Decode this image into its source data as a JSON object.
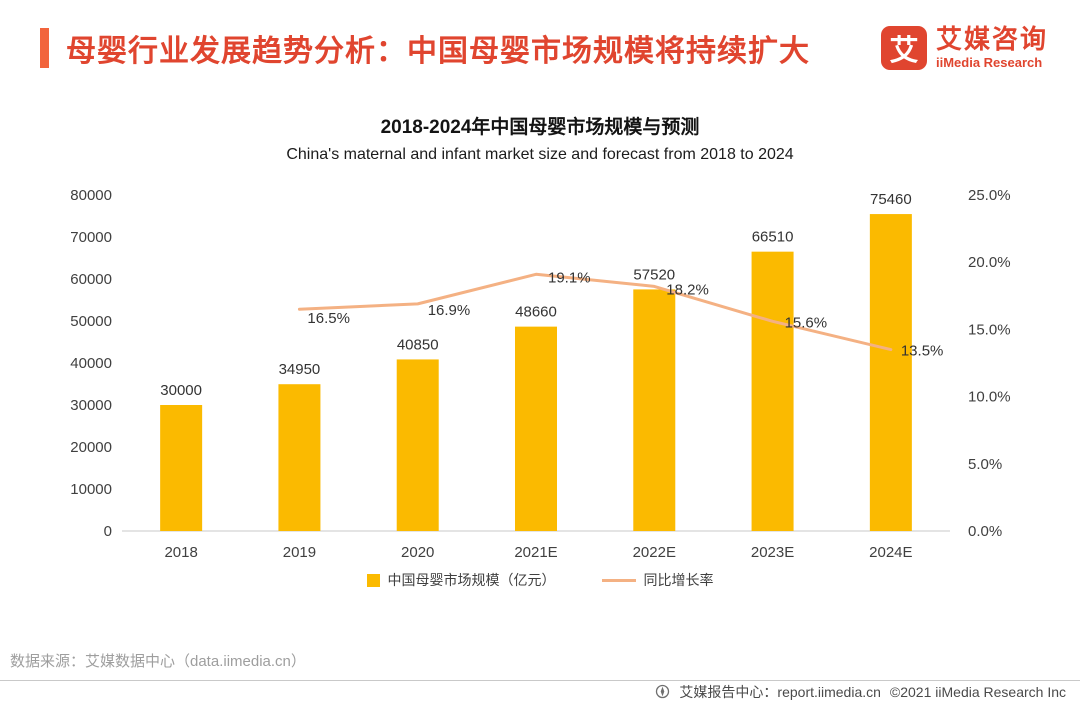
{
  "colors": {
    "brand": "#E0452F",
    "accent": "#F2643C",
    "bar": "#FBBA00",
    "line": "#F4B183",
    "source": "#9E9E9E"
  },
  "header": {
    "title": "母婴行业发展趋势分析：中国母婴市场规模将持续扩大",
    "logo": {
      "glyph": "艾",
      "name_cn": "艾媒咨询",
      "name_en": "iiMedia Research"
    }
  },
  "chart_data": {
    "type": "bar+line",
    "title": "2018-2024年中国母婴市场规模与预测",
    "subtitle": "China's maternal and infant market size and forecast from 2018 to 2024",
    "categories": [
      "2018",
      "2019",
      "2020",
      "2021E",
      "2022E",
      "2023E",
      "2024E"
    ],
    "series": [
      {
        "name": "中国母婴市场规模（亿元）",
        "type": "bar",
        "axis": "left",
        "color": "#FBBA00",
        "values": [
          30000,
          34950,
          40850,
          48660,
          57520,
          66510,
          75460
        ]
      },
      {
        "name": "同比增长率",
        "type": "line",
        "axis": "right",
        "color": "#F4B183",
        "values": [
          null,
          16.5,
          16.9,
          19.1,
          18.2,
          15.6,
          13.5
        ],
        "point_labels": [
          "",
          "16.5%",
          "16.9%",
          "19.1%",
          "18.2%",
          "15.6%",
          "13.5%"
        ]
      }
    ],
    "left_axis": {
      "min": 0,
      "max": 80000,
      "step": 10000,
      "ticks": [
        "0",
        "10000",
        "20000",
        "30000",
        "40000",
        "50000",
        "60000",
        "70000",
        "80000"
      ]
    },
    "right_axis": {
      "min": 0,
      "max": 25,
      "step": 5,
      "ticks": [
        "0.0%",
        "5.0%",
        "10.0%",
        "15.0%",
        "20.0%",
        "25.0%"
      ]
    },
    "grid": false,
    "legend_position": "bottom"
  },
  "footer": {
    "source": "数据来源：艾媒数据中心（data.iimedia.cn）",
    "report_center": "艾媒报告中心：report.iimedia.cn",
    "copyright": "©2021  iiMedia Research  Inc"
  }
}
